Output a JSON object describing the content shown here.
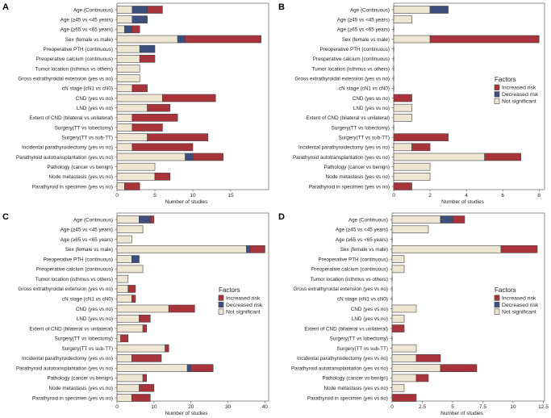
{
  "chart_data": {
    "type": "bar",
    "orientation": "horizontal-stacked",
    "colors": {
      "Increased risk": "#a8333a",
      "Decreased risk": "#3d4f7e",
      "Not significant": "#ece6d2"
    },
    "categories": [
      "Age (Continuous)",
      "Age (≥45 vs <45 years)",
      "Age (≥65 vs <65 years)",
      "Sex (female vs male)",
      "Preoperative PTH (continuous)",
      "Preoperative calcium (continuous)",
      "Tumor location (isthmus vs others)",
      "Gross extrathyroidal extension (yes vs no)",
      "cN stage (cN1 vs cN0)",
      "CND (yes vs no)",
      "LND (yes vs no)",
      "Extent of CND (bilateral vs unilateral)",
      "Surgery(TT vs lobectomy)",
      "Surgery(TT vs sub-TT)",
      "Incidental parathyroidectomy (yes vs no)",
      "Parathyroid autotransplantation (yes vs no)",
      "Pathology (cancer vs benign)",
      "Node metastasis (yes vs no)",
      "Parathyroid in specimen (yes vs no)"
    ],
    "panels": [
      {
        "label": "A",
        "xlabel": "Number of studies",
        "xlim": [
          0,
          20
        ],
        "ticks": [
          0,
          5,
          10,
          15
        ],
        "tick_labels": [
          "0",
          "5",
          "10",
          "15"
        ],
        "legend": null,
        "series": [
          {
            "name": "Not significant",
            "values": [
              2,
              2,
              1,
              8,
              3,
              3,
              3,
              3,
              2,
              6,
              4,
              2,
              2,
              4,
              2,
              9,
              5,
              5,
              1
            ]
          },
          {
            "name": "Decreased risk",
            "values": [
              2,
              2,
              1,
              1,
              2,
              0,
              0,
              0,
              0,
              0,
              0,
              0,
              0,
              0,
              0,
              1,
              0,
              0,
              0
            ]
          },
          {
            "name": "Increased risk",
            "values": [
              2,
              0,
              1,
              10,
              0,
              2,
              0,
              0,
              2,
              7,
              3,
              6,
              4,
              8,
              8,
              4,
              0,
              2,
              2
            ]
          }
        ]
      },
      {
        "label": "B",
        "xlabel": "Number of studies",
        "xlim": [
          0,
          8.3
        ],
        "ticks": [
          0,
          2,
          4,
          6,
          8
        ],
        "tick_labels": [
          "0",
          "2",
          "4",
          "6",
          "8"
        ],
        "legend": "center-right",
        "series": [
          {
            "name": "Not significant",
            "values": [
              2,
              1,
              0,
              2,
              0,
              0,
              0,
              0,
              0,
              0,
              1,
              1,
              0,
              0,
              1,
              5,
              2,
              2,
              0
            ]
          },
          {
            "name": "Decreased risk",
            "values": [
              1,
              0,
              0,
              0,
              0,
              0,
              0,
              0,
              0,
              0,
              0,
              0,
              0,
              0,
              0,
              0,
              0,
              0,
              0
            ]
          },
          {
            "name": "Increased risk",
            "values": [
              0,
              0,
              0,
              6,
              0,
              0,
              0,
              0,
              0,
              1,
              0,
              0,
              0,
              3,
              1,
              2,
              0,
              0,
              1
            ]
          }
        ]
      },
      {
        "label": "C",
        "xlabel": "Number of studies",
        "xlim": [
          0,
          41
        ],
        "ticks": [
          0,
          10,
          20,
          30,
          40
        ],
        "tick_labels": [
          "0",
          "10",
          "20",
          "30",
          "40"
        ],
        "legend": "center-right",
        "series": [
          {
            "name": "Not significant",
            "values": [
              6,
              7,
              4,
              35,
              4,
              7,
              3,
              3,
              4,
              14,
              6,
              7,
              1,
              13,
              4,
              19,
              7,
              6,
              4
            ]
          },
          {
            "name": "Decreased risk",
            "values": [
              3,
              0,
              0,
              1,
              2,
              0,
              0,
              0,
              0,
              0,
              0,
              0,
              0,
              0,
              0,
              1,
              0,
              0,
              0
            ]
          },
          {
            "name": "Increased risk",
            "values": [
              1,
              0,
              0,
              4,
              0,
              0,
              0,
              2,
              1,
              7,
              3,
              1,
              2,
              1,
              8,
              6,
              1,
              4,
              5
            ]
          }
        ]
      },
      {
        "label": "D",
        "xlabel": "Number of studies",
        "xlim": [
          0,
          12.6
        ],
        "ticks": [
          0,
          2.5,
          5,
          7.5,
          10,
          12.5
        ],
        "tick_labels": [
          "0",
          "2.5",
          "5",
          "7.5",
          "10",
          "12.5"
        ],
        "legend": "center-right",
        "series": [
          {
            "name": "Not significant",
            "values": [
              4,
              3,
              0,
              9,
              1,
              1,
              0,
              0,
              0,
              2,
              1,
              0,
              0,
              2,
              2,
              4,
              2,
              1,
              0
            ]
          },
          {
            "name": "Decreased risk",
            "values": [
              1,
              0,
              0,
              0,
              0,
              0,
              0,
              0,
              0,
              0,
              0,
              0,
              0,
              0,
              0,
              0,
              0,
              0,
              0
            ]
          },
          {
            "name": "Increased risk",
            "values": [
              1,
              0,
              0,
              3,
              0,
              0,
              0,
              0,
              0,
              0,
              0,
              1,
              0,
              0,
              2,
              3,
              1,
              0,
              2
            ]
          }
        ]
      }
    ],
    "legend_title": "Factors",
    "legend_entries": [
      "Increased risk",
      "Decreased risk",
      "Not significant"
    ]
  }
}
